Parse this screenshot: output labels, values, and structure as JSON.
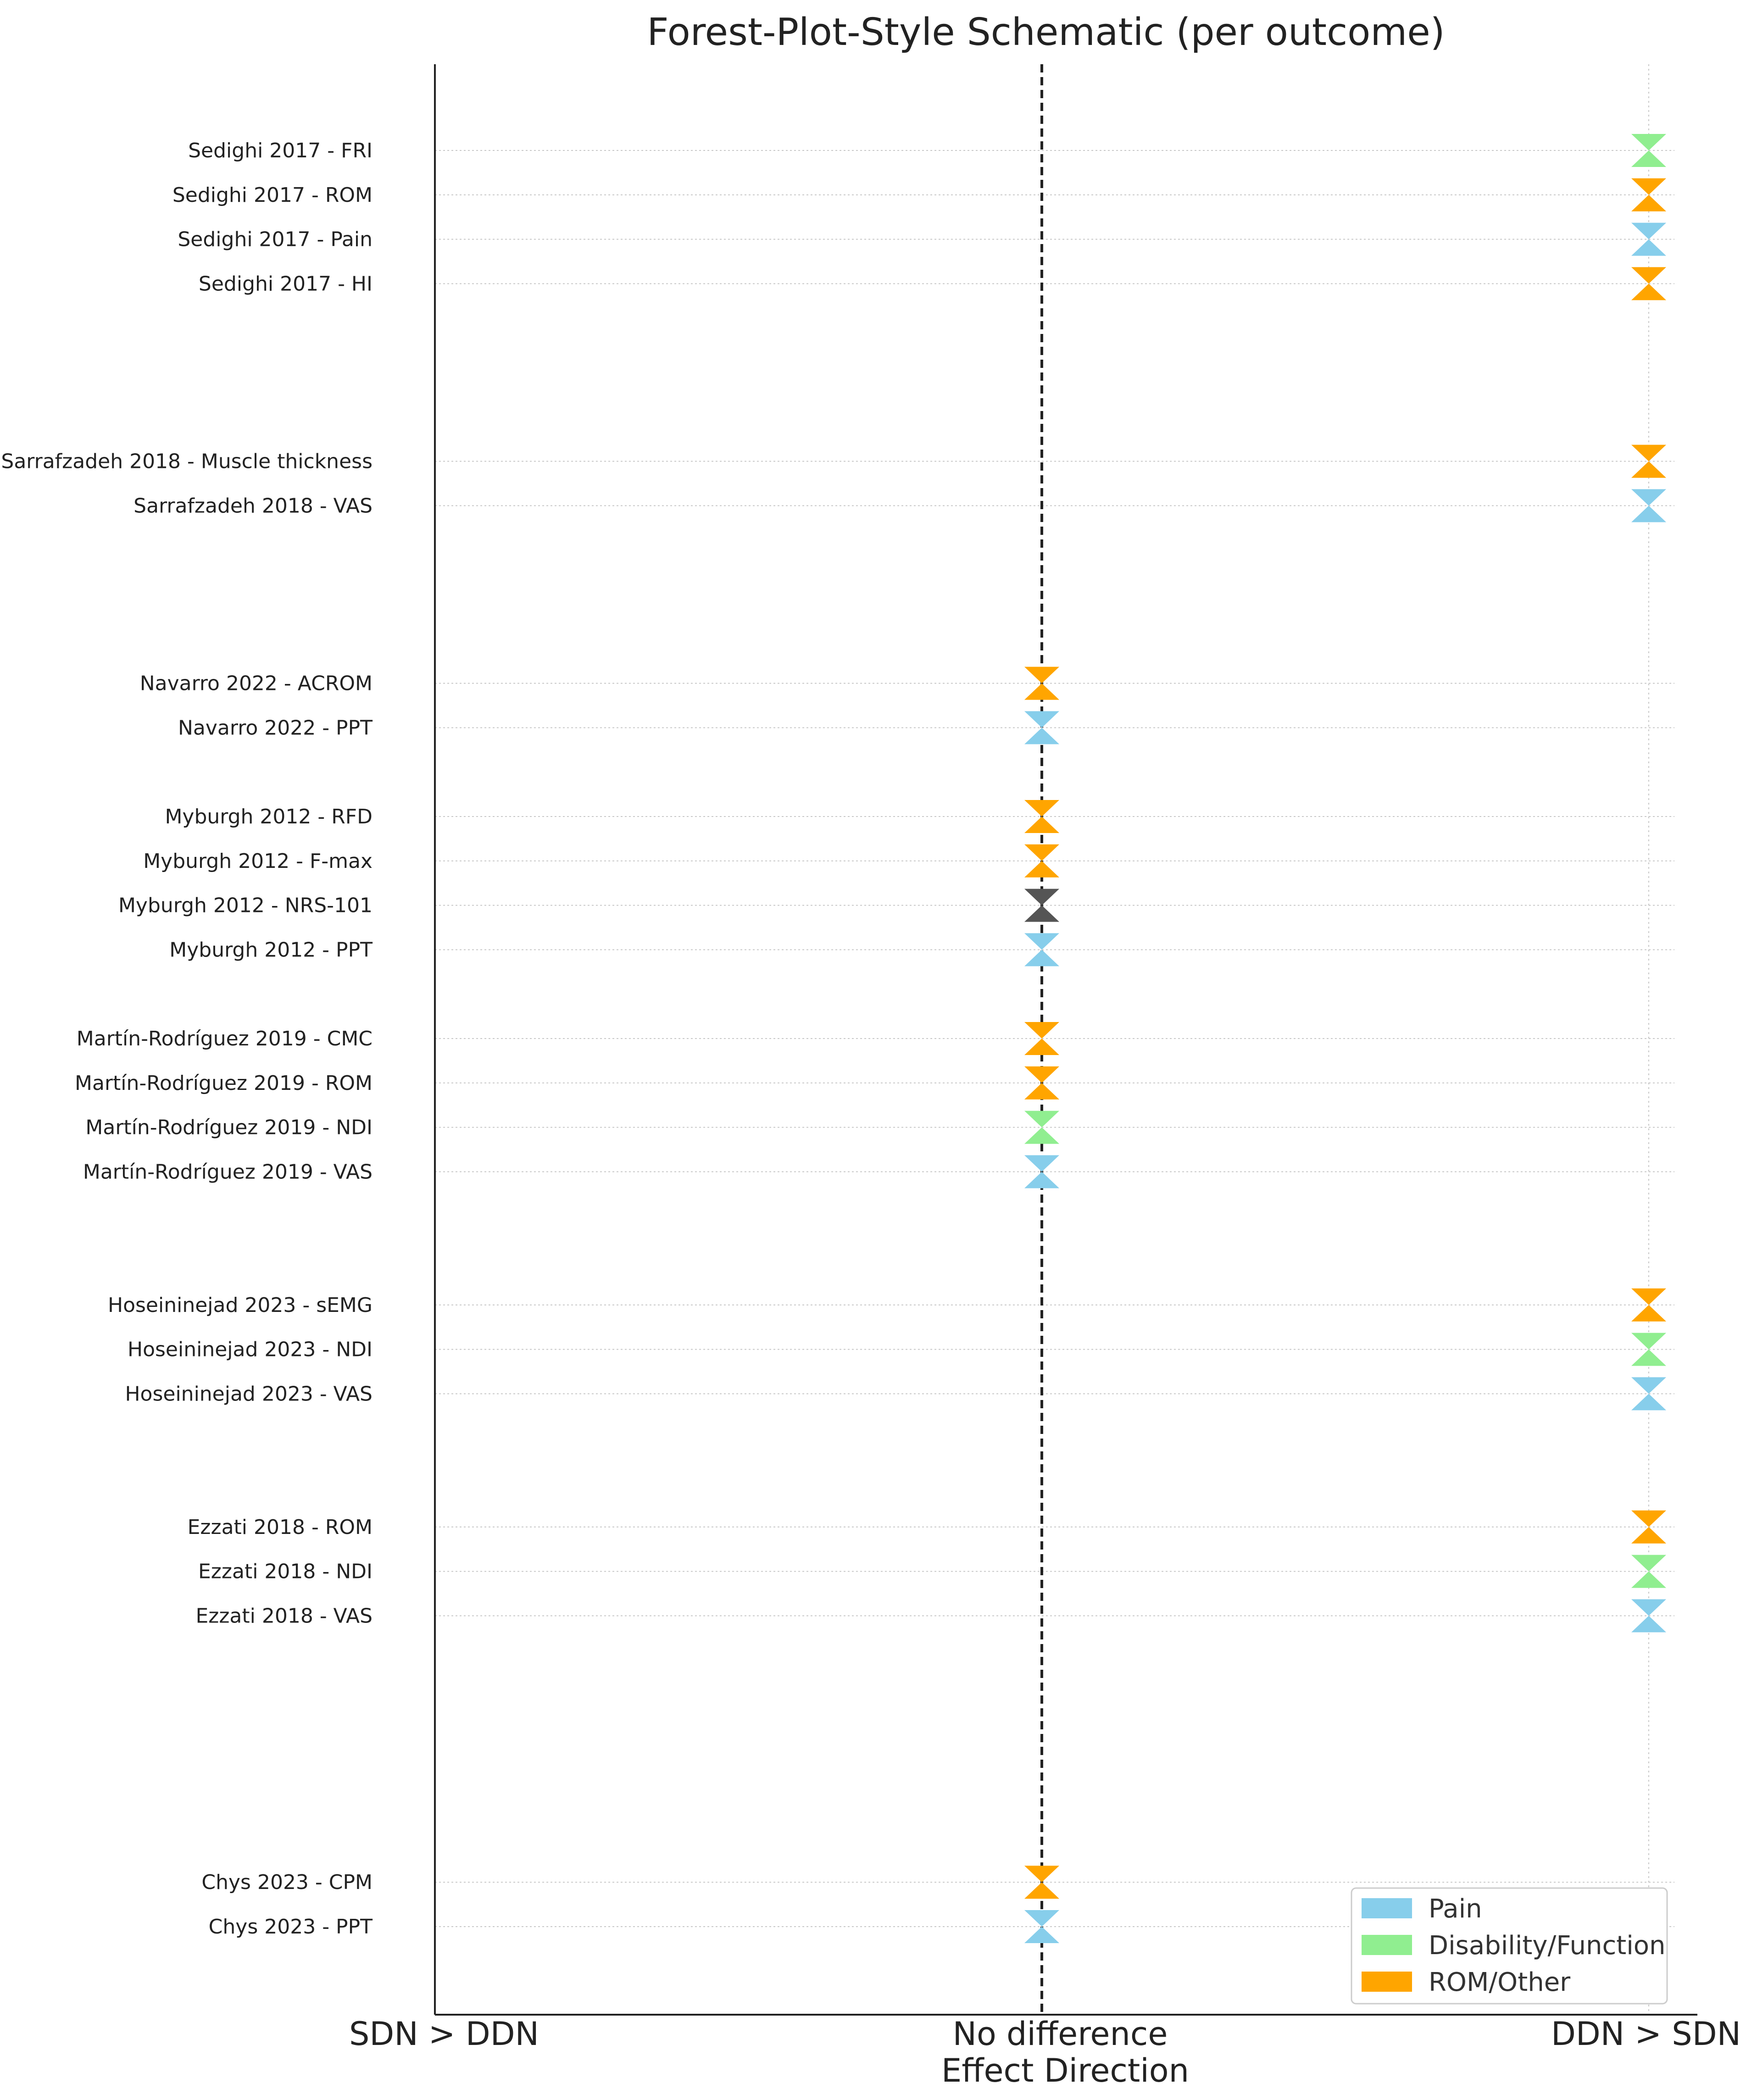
{
  "chart_data": {
    "type": "scatter",
    "title": "Forest-Plot-Style Schematic (per outcome)",
    "xlabel": "Effect Direction",
    "ylabel": "",
    "x_ticks": [
      {
        "value": -1,
        "label": "SDN > DDN"
      },
      {
        "value": 0,
        "label": "No difference"
      },
      {
        "value": 1,
        "label": "DDN > SDN"
      }
    ],
    "xlim": [
      -1,
      1
    ],
    "reference_line": {
      "x": 0,
      "style": "dashed"
    },
    "categories_colors": {
      "Pain": "#87CEEB",
      "Disability/Function": "#90EE90",
      "ROM/Other": "#FFA500",
      "Unclassified": "#555555"
    },
    "legend": {
      "position": "lower-right",
      "entries": [
        {
          "label": "Pain",
          "color": "#87CEEB"
        },
        {
          "label": "Disability/Function",
          "color": "#90EE90"
        },
        {
          "label": "ROM/Other",
          "color": "#FFA500"
        }
      ]
    },
    "rows": [
      {
        "y": 1,
        "label": "Chys 2023 - PPT",
        "x": 0,
        "category": "Pain"
      },
      {
        "y": 2,
        "label": "Chys 2023 - CPM",
        "x": 0,
        "category": "ROM/Other"
      },
      {
        "y": 8,
        "label": "Ezzati 2018 - VAS",
        "x": 1,
        "category": "Pain"
      },
      {
        "y": 9,
        "label": "Ezzati 2018 - NDI",
        "x": 1,
        "category": "Disability/Function"
      },
      {
        "y": 10,
        "label": "Ezzati 2018 - ROM",
        "x": 1,
        "category": "ROM/Other"
      },
      {
        "y": 13,
        "label": "Hoseininejad 2023 - VAS",
        "x": 1,
        "category": "Pain"
      },
      {
        "y": 14,
        "label": "Hoseininejad 2023 - NDI",
        "x": 1,
        "category": "Disability/Function"
      },
      {
        "y": 15,
        "label": "Hoseininejad 2023 - sEMG",
        "x": 1,
        "category": "ROM/Other"
      },
      {
        "y": 18,
        "label": "Martín-Rodríguez 2019 - VAS",
        "x": 0,
        "category": "Pain"
      },
      {
        "y": 19,
        "label": "Martín-Rodríguez 2019 - NDI",
        "x": 0,
        "category": "Disability/Function"
      },
      {
        "y": 20,
        "label": "Martín-Rodríguez 2019 - ROM",
        "x": 0,
        "category": "ROM/Other"
      },
      {
        "y": 21,
        "label": "Martín-Rodríguez 2019 - CMC",
        "x": 0,
        "category": "ROM/Other"
      },
      {
        "y": 23,
        "label": "Myburgh 2012 - PPT",
        "x": 0,
        "category": "Pain"
      },
      {
        "y": 24,
        "label": "Myburgh 2012 - NRS-101",
        "x": 0,
        "category": "Unclassified"
      },
      {
        "y": 25,
        "label": "Myburgh 2012 - F-max",
        "x": 0,
        "category": "ROM/Other"
      },
      {
        "y": 26,
        "label": "Myburgh 2012 - RFD",
        "x": 0,
        "category": "ROM/Other"
      },
      {
        "y": 28,
        "label": "Navarro 2022 - PPT",
        "x": 0,
        "category": "Pain"
      },
      {
        "y": 29,
        "label": "Navarro 2022 - ACROM",
        "x": 0,
        "category": "ROM/Other"
      },
      {
        "y": 33,
        "label": "Sarrafzadeh 2018 - VAS",
        "x": 1,
        "category": "Pain"
      },
      {
        "y": 34,
        "label": "Sarrafzadeh 2018 - Muscle thickness",
        "x": 1,
        "category": "ROM/Other"
      },
      {
        "y": 38,
        "label": "Sedighi 2017 - HI",
        "x": 1,
        "category": "ROM/Other"
      },
      {
        "y": 39,
        "label": "Sedighi 2017 - Pain",
        "x": 1,
        "category": "Pain"
      },
      {
        "y": 40,
        "label": "Sedighi 2017 - ROM",
        "x": 1,
        "category": "ROM/Other"
      },
      {
        "y": 41,
        "label": "Sedighi 2017 - FRI",
        "x": 1,
        "category": "Disability/Function"
      }
    ],
    "ylim": [
      0,
      43
    ],
    "grid": "horizontal dotted"
  }
}
